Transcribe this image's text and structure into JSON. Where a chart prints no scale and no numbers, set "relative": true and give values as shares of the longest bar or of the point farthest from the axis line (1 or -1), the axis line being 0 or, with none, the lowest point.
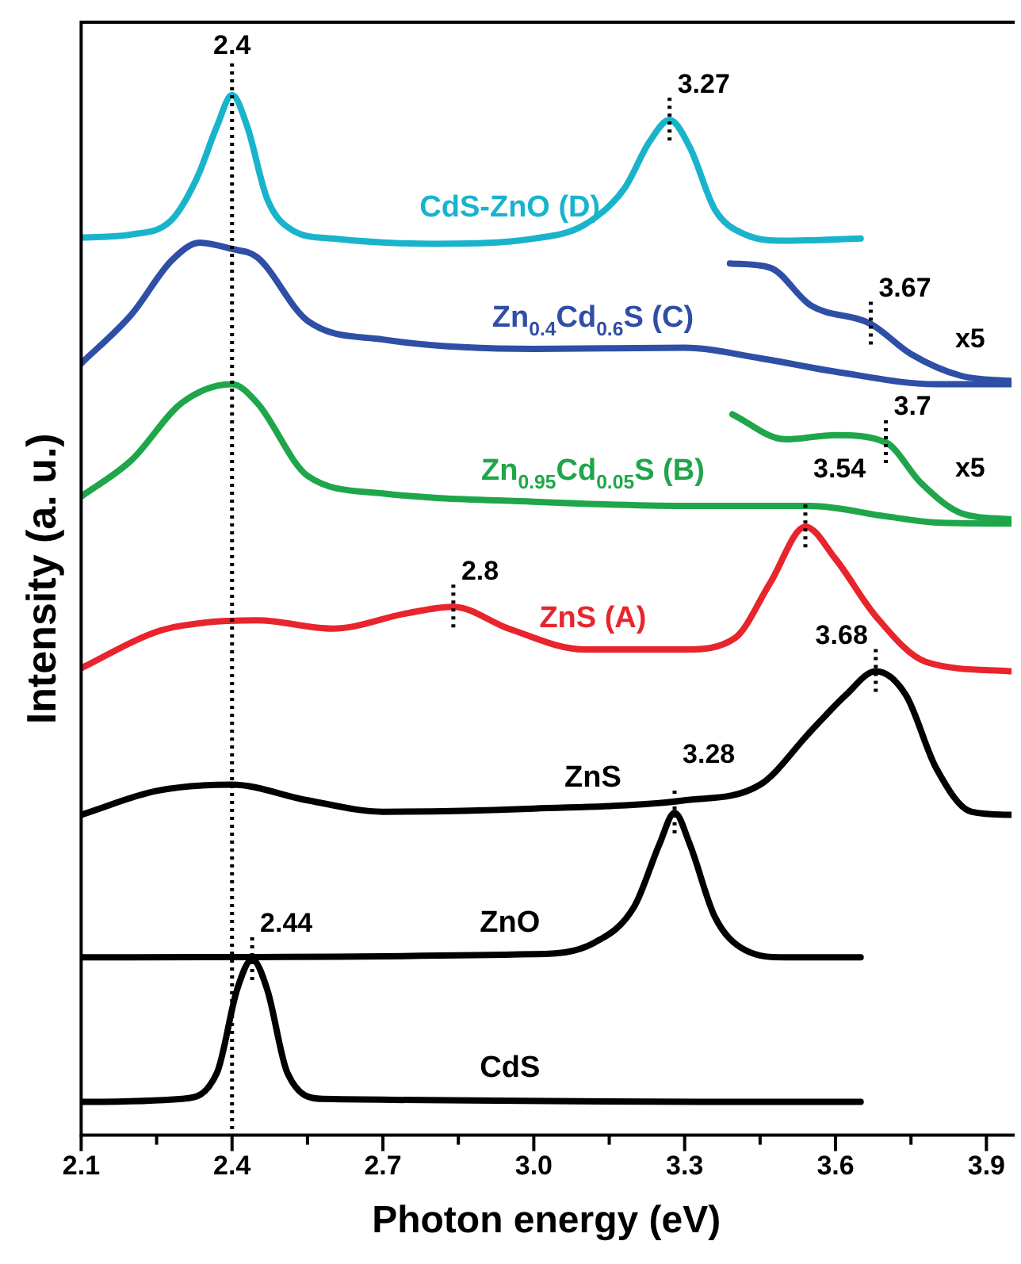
{
  "chart_data": {
    "type": "line",
    "relative": true,
    "xlabel": "Photon energy (eV)",
    "ylabel": "Intensity (a. u.)",
    "xlim": [
      2.1,
      3.95
    ],
    "xticks": [
      2.1,
      {
        "value": 2.25,
        "label": null
      },
      2.4,
      {
        "value": 2.55,
        "label": null
      },
      2.7,
      {
        "value": 2.85,
        "label": null
      },
      {
        "value": 3,
        "label": "3.0"
      },
      {
        "value": 3.15,
        "label": null
      },
      3.3,
      {
        "value": 3.45,
        "label": null
      },
      3.6,
      {
        "value": 3.75,
        "label": null
      },
      3.9
    ],
    "grid": false,
    "legend": false,
    "marker": "none",
    "line_style": "solid",
    "series": [
      {
        "name": "CdS-ZnO (D)",
        "color": "#19b4cc",
        "x": [
          2.1,
          2.2,
          2.28,
          2.33,
          2.37,
          2.4,
          2.43,
          2.47,
          2.52,
          2.6,
          2.8,
          3.0,
          3.1,
          3.18,
          3.23,
          3.27,
          3.31,
          3.36,
          3.42,
          3.5,
          3.65
        ],
        "values": [
          0.863,
          0.866,
          0.88,
          0.92,
          0.97,
          1.0,
          0.97,
          0.9,
          0.87,
          0.862,
          0.857,
          0.862,
          0.875,
          0.91,
          0.955,
          0.976,
          0.95,
          0.89,
          0.866,
          0.86,
          0.862
        ]
      },
      {
        "name": "Zn$_{0.4}$Cd$_{0.6}$S (C)",
        "color": "#2f4ea6",
        "x": [
          2.1,
          2.2,
          2.28,
          2.336,
          2.4,
          2.45,
          2.55,
          2.7,
          3.0,
          3.3,
          3.45,
          3.6,
          3.8,
          3.95
        ],
        "values": [
          0.742,
          0.789,
          0.841,
          0.858,
          0.852,
          0.844,
          0.783,
          0.765,
          0.756,
          0.757,
          0.747,
          0.734,
          0.722,
          0.722
        ]
      },
      {
        "color": "#2f4ea6",
        "x": [
          3.39,
          3.47,
          3.55,
          3.67,
          3.75,
          3.85,
          3.95
        ],
        "values": [
          0.838,
          0.834,
          0.798,
          0.78,
          0.751,
          0.73,
          0.725
        ]
      },
      {
        "name": "Zn$_{0.95}$Cd$_{0.05}$S (B)",
        "color": "#1fa64a",
        "x": [
          2.1,
          2.2,
          2.3,
          2.4,
          2.45,
          2.55,
          2.7,
          3.0,
          3.3,
          3.55,
          3.7,
          3.8,
          3.95
        ],
        "values": [
          0.614,
          0.649,
          0.704,
          0.722,
          0.704,
          0.634,
          0.617,
          0.609,
          0.605,
          0.605,
          0.595,
          0.589,
          0.588
        ]
      },
      {
        "color": "#1fa64a",
        "x": [
          3.395,
          3.5,
          3.6,
          3.7,
          3.77,
          3.85,
          3.95
        ],
        "values": [
          0.693,
          0.669,
          0.673,
          0.666,
          0.627,
          0.598,
          0.592
        ]
      },
      {
        "name": "ZnS (A)",
        "color": "#e8242c",
        "x": [
          2.1,
          2.25,
          2.35,
          2.45,
          2.6,
          2.75,
          2.84,
          2.95,
          3.1,
          3.3,
          3.4,
          3.47,
          3.54,
          3.6,
          3.68,
          3.78,
          3.95
        ],
        "values": [
          0.449,
          0.484,
          0.493,
          0.495,
          0.487,
          0.502,
          0.508,
          0.487,
          0.467,
          0.467,
          0.478,
          0.531,
          0.585,
          0.554,
          0.499,
          0.455,
          0.446
        ]
      },
      {
        "name": "ZnS",
        "color": "#000000",
        "x": [
          2.1,
          2.25,
          2.4,
          2.55,
          2.7,
          3.0,
          3.3,
          3.45,
          3.55,
          3.62,
          3.68,
          3.74,
          3.8,
          3.87,
          3.95
        ],
        "values": [
          0.308,
          0.331,
          0.337,
          0.322,
          0.311,
          0.314,
          0.322,
          0.337,
          0.388,
          0.423,
          0.446,
          0.423,
          0.353,
          0.311,
          0.308
        ]
      },
      {
        "name": "ZnO",
        "color": "#000000",
        "x": [
          2.1,
          3.0,
          3.12,
          3.2,
          3.25,
          3.28,
          3.31,
          3.36,
          3.42,
          3.5,
          3.65
        ],
        "values": [
          0.171,
          0.174,
          0.185,
          0.22,
          0.28,
          0.31,
          0.28,
          0.21,
          0.178,
          0.171,
          0.171
        ]
      },
      {
        "name": "CdS",
        "color": "#000000",
        "x": [
          2.1,
          2.3,
          2.37,
          2.41,
          2.44,
          2.47,
          2.51,
          2.58,
          3.65
        ],
        "values": [
          0.032,
          0.035,
          0.06,
          0.14,
          0.169,
          0.14,
          0.06,
          0.035,
          0.032
        ]
      }
    ],
    "ref_lines": [
      {
        "axis": "x",
        "value": 2.4,
        "label": "2.4",
        "line_style": "dotted",
        "color": "#000000"
      }
    ],
    "annotations": [
      {
        "text": "3.27",
        "x": 3.27,
        "y": 0.976
      },
      {
        "text": "3.67",
        "x": 3.67,
        "y": 0.78
      },
      {
        "text": "x5",
        "x": 3.8,
        "y": 0.74
      },
      {
        "text": "3.7",
        "x": 3.7,
        "y": 0.666
      },
      {
        "text": "x5",
        "x": 3.8,
        "y": 0.616
      },
      {
        "text": "2.8",
        "x": 2.84,
        "y": 0.508
      },
      {
        "text": "3.54",
        "x": 3.54,
        "y": 0.585
      },
      {
        "text": "3.68",
        "x": 3.68,
        "y": 0.446
      },
      {
        "text": "3.28",
        "x": 3.28,
        "y": 0.31
      },
      {
        "text": "2.44",
        "x": 2.44,
        "y": 0.169
      }
    ]
  }
}
